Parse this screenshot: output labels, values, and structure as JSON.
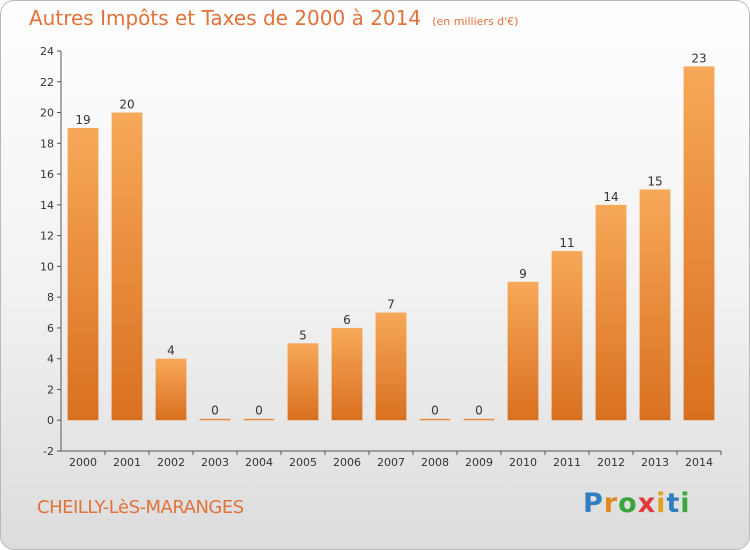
{
  "title": "Autres Impôts et Taxes de 2000 à 2014",
  "unit": "(en milliers d'€)",
  "commune": "CHEILLY-LèS-MARANGES",
  "logo": {
    "letters": [
      "P",
      "r",
      "o",
      "x",
      "i",
      "t",
      "i"
    ],
    "colors": [
      "#2f7fc1",
      "#e08a1e",
      "#3aa53a",
      "#e03a3a",
      "#e0a21e",
      "#2f7fc1",
      "#3aa53a"
    ]
  },
  "colors": {
    "bar_light": "#f7a859",
    "bar_dark": "#d9701f",
    "title": "#e0723a"
  },
  "chart_data": {
    "type": "bar",
    "categories": [
      "2000",
      "2001",
      "2002",
      "2003",
      "2004",
      "2005",
      "2006",
      "2007",
      "2008",
      "2009",
      "2010",
      "2011",
      "2012",
      "2013",
      "2014"
    ],
    "values": [
      19,
      20,
      4,
      0,
      0,
      5,
      6,
      7,
      0,
      0,
      9,
      11,
      14,
      15,
      23
    ],
    "ylim": [
      -2,
      24
    ],
    "yticks": [
      -2,
      0,
      2,
      4,
      6,
      8,
      10,
      12,
      14,
      16,
      18,
      20,
      22,
      24
    ],
    "grid": false,
    "xlabel": "",
    "ylabel": ""
  }
}
